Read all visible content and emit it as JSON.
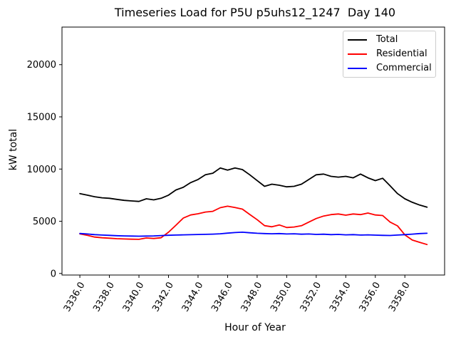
{
  "chart_data": {
    "type": "line",
    "title": "Timeseries Load for P5U p5uhs12_1247  Day 140",
    "xlabel": "Hour of Year",
    "ylabel": "kW total",
    "grid": false,
    "legend_position": "upper right",
    "x_start": 3336.0,
    "x_step": 0.5,
    "xlim": [
      3334.79,
      3360.69
    ],
    "ylim": [
      -150,
      23600
    ],
    "xtick_values": [
      3336,
      3338,
      3340,
      3342,
      3344,
      3346,
      3348,
      3350,
      3352,
      3354,
      3356,
      3358
    ],
    "xtick_labels": [
      "3336.0",
      "3338.0",
      "3340.0",
      "3342.0",
      "3344.0",
      "3346.0",
      "3348.0",
      "3350.0",
      "3352.0",
      "3354.0",
      "3356.0",
      "3358.0"
    ],
    "ytick_values": [
      0,
      5000,
      10000,
      15000,
      20000
    ],
    "ytick_labels": [
      "0",
      "5000",
      "10000",
      "15000",
      "20000"
    ],
    "series": [
      {
        "name": "Total",
        "color": "#000000",
        "values": [
          7650,
          7500,
          7350,
          7250,
          7200,
          7100,
          7000,
          6950,
          6900,
          7150,
          7050,
          7200,
          7500,
          8000,
          8250,
          8700,
          9000,
          9450,
          9600,
          10100,
          9900,
          10100,
          9950,
          9450,
          8900,
          8350,
          8550,
          8450,
          8300,
          8350,
          8550,
          9000,
          9450,
          9520,
          9300,
          9230,
          9300,
          9160,
          9520,
          9160,
          8890,
          9120,
          8400,
          7650,
          7150,
          6820,
          6550,
          6350
        ]
      },
      {
        "name": "Residential",
        "color": "#ff0000",
        "values": [
          3790,
          3650,
          3490,
          3420,
          3380,
          3330,
          3300,
          3280,
          3270,
          3400,
          3350,
          3420,
          3950,
          4620,
          5300,
          5600,
          5720,
          5880,
          5950,
          6300,
          6440,
          6320,
          6160,
          5650,
          5150,
          4580,
          4470,
          4650,
          4400,
          4450,
          4570,
          4920,
          5260,
          5500,
          5640,
          5700,
          5580,
          5700,
          5640,
          5790,
          5600,
          5550,
          4920,
          4560,
          3700,
          3200,
          2980,
          2770
        ]
      },
      {
        "name": "Commercial",
        "color": "#0000ff",
        "values": [
          3830,
          3780,
          3720,
          3680,
          3650,
          3620,
          3600,
          3580,
          3570,
          3580,
          3600,
          3630,
          3660,
          3680,
          3700,
          3710,
          3730,
          3750,
          3770,
          3800,
          3860,
          3920,
          3950,
          3900,
          3850,
          3820,
          3800,
          3820,
          3780,
          3800,
          3760,
          3780,
          3740,
          3760,
          3720,
          3740,
          3700,
          3720,
          3680,
          3700,
          3670,
          3650,
          3640,
          3680,
          3720,
          3770,
          3820,
          3850
        ]
      }
    ]
  }
}
